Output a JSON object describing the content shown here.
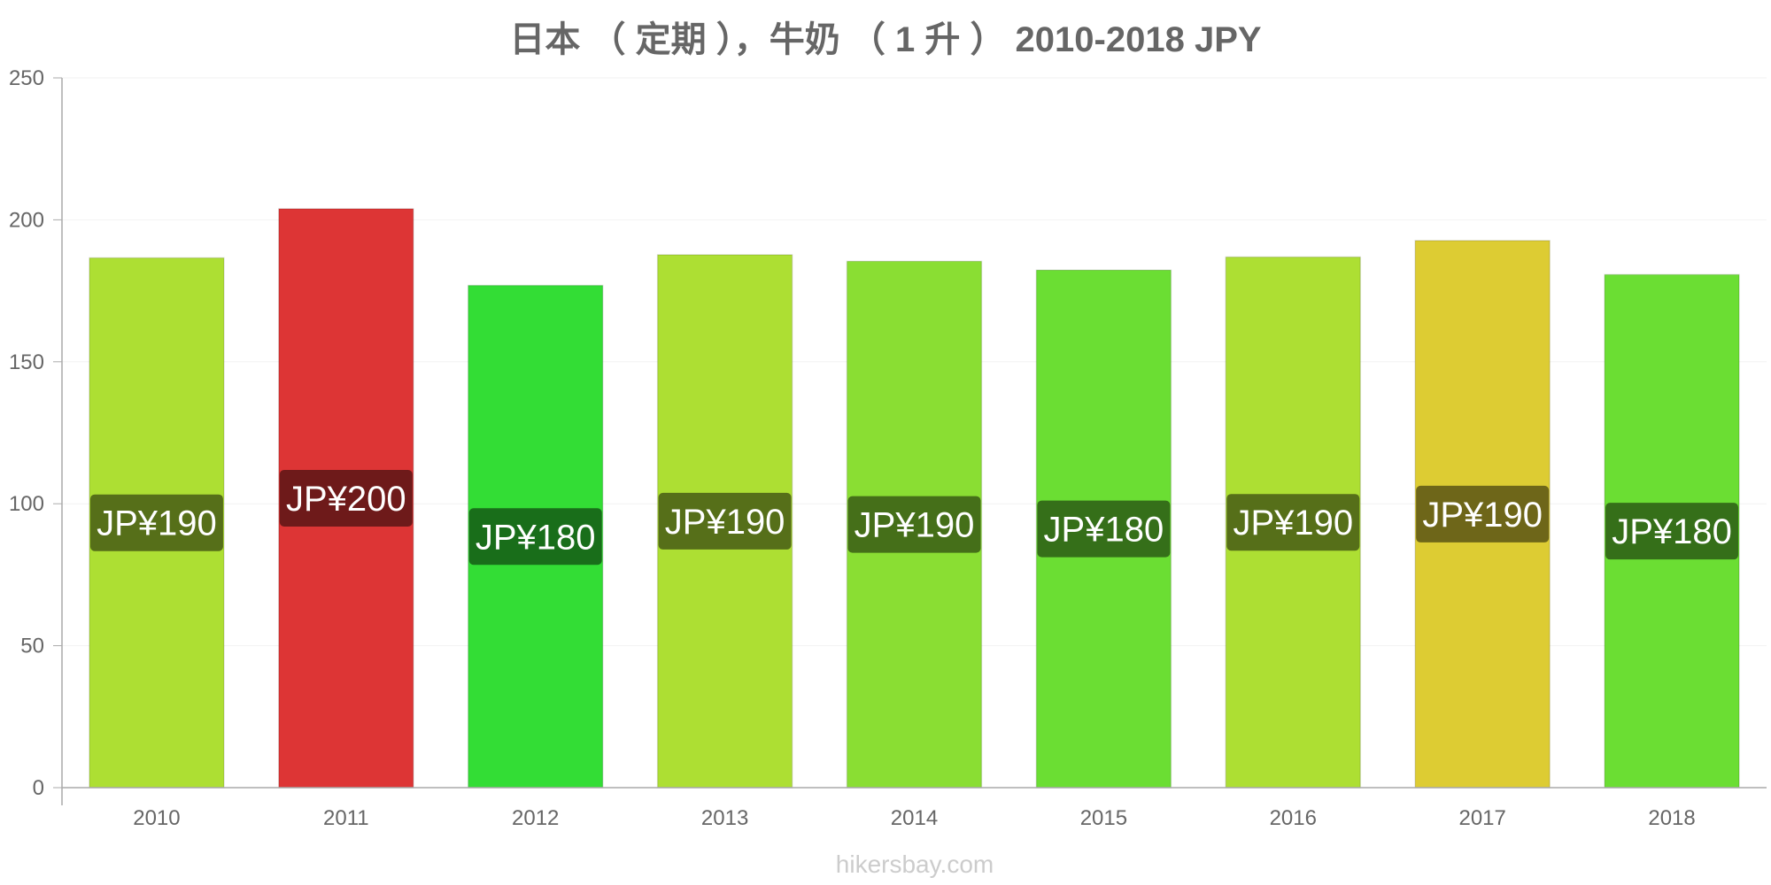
{
  "chart_data": {
    "type": "bar",
    "title": "日本 （ 定期 ），牛奶 （ 1 升 ） 2010-2018 JPY",
    "categories": [
      "2010",
      "2011",
      "2012",
      "2013",
      "2014",
      "2015",
      "2016",
      "2017",
      "2018"
    ],
    "values": [
      186.6,
      203.9,
      176.9,
      187.7,
      185.4,
      182.3,
      186.9,
      192.7,
      180.7
    ],
    "data_labels": [
      "JP¥190",
      "JP¥200",
      "JP¥180",
      "JP¥190",
      "JP¥190",
      "JP¥180",
      "JP¥190",
      "JP¥190",
      "JP¥180"
    ],
    "bar_colors": [
      "#addf33",
      "#dd3535",
      "#33dd35",
      "#addf33",
      "#8ade33",
      "#6bde33",
      "#addf33",
      "#ddcc33",
      "#6bde33"
    ],
    "label_bg_colors": [
      "#566f19",
      "#6e1a1a",
      "#196e1a",
      "#566f19",
      "#456f19",
      "#356f19",
      "#566f19",
      "#6e6619",
      "#356f19"
    ],
    "yticks": [
      "0",
      "50",
      "100",
      "150",
      "200",
      "250"
    ],
    "ylim": [
      0,
      250
    ],
    "xlabel": "",
    "ylabel": "",
    "grid": true
  },
  "footer": {
    "watermark": "hikersbay.com"
  }
}
